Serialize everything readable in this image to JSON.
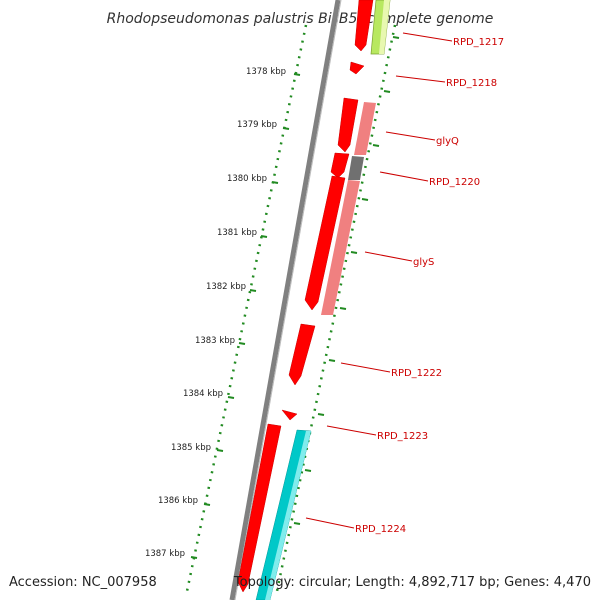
{
  "title": "Rhodopseudomonas palustris BisB5, complete genome",
  "footer": {
    "accession": "Accession: NC_007958",
    "topology": "Topology: circular; Length: 4,892,717 bp; Genes: 4,470"
  },
  "scale_labels": [
    "1378 kbp",
    "1379 kbp",
    "1380 kbp",
    "1381 kbp",
    "1382 kbp",
    "1383 kbp",
    "1384 kbp",
    "1385 kbp",
    "1386 kbp",
    "1387 kbp"
  ],
  "gene_labels": [
    "RPD_1217",
    "RPD_1218",
    "glyQ",
    "RPD_1220",
    "glyS",
    "RPD_1222",
    "RPD_1223",
    "RPD_1224"
  ],
  "colors": {
    "gene_forward": "#ff0000",
    "gene_reverse_pink": "#f08080",
    "gene_cyan": "#00c8c8",
    "gene_lime": "#b8e860",
    "gene_gray": "#707070",
    "backbone": "#808080",
    "ruler": "#228b22",
    "label": "#cc0000"
  }
}
